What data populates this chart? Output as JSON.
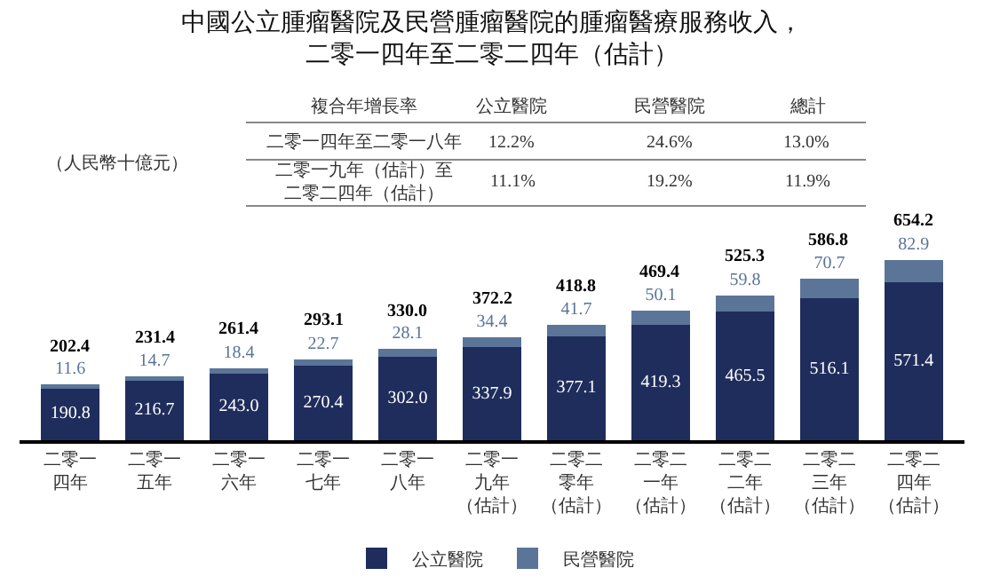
{
  "chart_data": {
    "type": "bar",
    "stacked": true,
    "title": "中國公立腫瘤醫院及民營腫瘤醫院的腫瘤醫療服務收入，",
    "subtitle": "二零一四年至二零二四年（估計）",
    "categories": [
      "二零一四年",
      "二零一五年",
      "二零一六年",
      "二零一七年",
      "二零一八年",
      "二零一九年（估計）",
      "二零二零年（估計）",
      "二零二一年（估計）",
      "二零二二年（估計）",
      "二零二三年（估計）",
      "二零二四年（估計）"
    ],
    "series": [
      {
        "name": "公立醫院",
        "color": "#1f2d5c",
        "values": [
          190.8,
          216.7,
          243.0,
          270.4,
          302.0,
          337.9,
          377.1,
          419.3,
          465.5,
          516.1,
          571.4
        ],
        "value_labels": [
          "190.8",
          "216.7",
          "243.0",
          "270.4",
          "302.0",
          "337.9",
          "377.1",
          "419.3",
          "465.5",
          "516.1",
          "571.4"
        ]
      },
      {
        "name": "民營醫院",
        "color": "#5b7598",
        "values": [
          11.6,
          14.7,
          18.4,
          22.7,
          28.1,
          34.4,
          41.7,
          50.1,
          59.8,
          70.7,
          82.9
        ],
        "value_labels": [
          "11.6",
          "14.7",
          "18.4",
          "22.7",
          "28.1",
          "34.4",
          "41.7",
          "50.1",
          "59.8",
          "70.7",
          "82.9"
        ]
      }
    ],
    "totals": [
      "202.4",
      "231.4",
      "261.4",
      "293.1",
      "330.0",
      "372.2",
      "418.8",
      "469.4",
      "525.3",
      "586.8",
      "654.2"
    ],
    "legend": "bottom",
    "annotations": [
      "（人民幣十億元）",
      "複合年增長率",
      "公立醫院",
      "民營醫院",
      "總計",
      "二零一四年至二零一八年",
      "12.2%",
      "24.6%",
      "13.0%",
      "二零一九年（估計）至二零二四年（估計）",
      "11.1%",
      "19.2%",
      "11.9%"
    ]
  }
}
